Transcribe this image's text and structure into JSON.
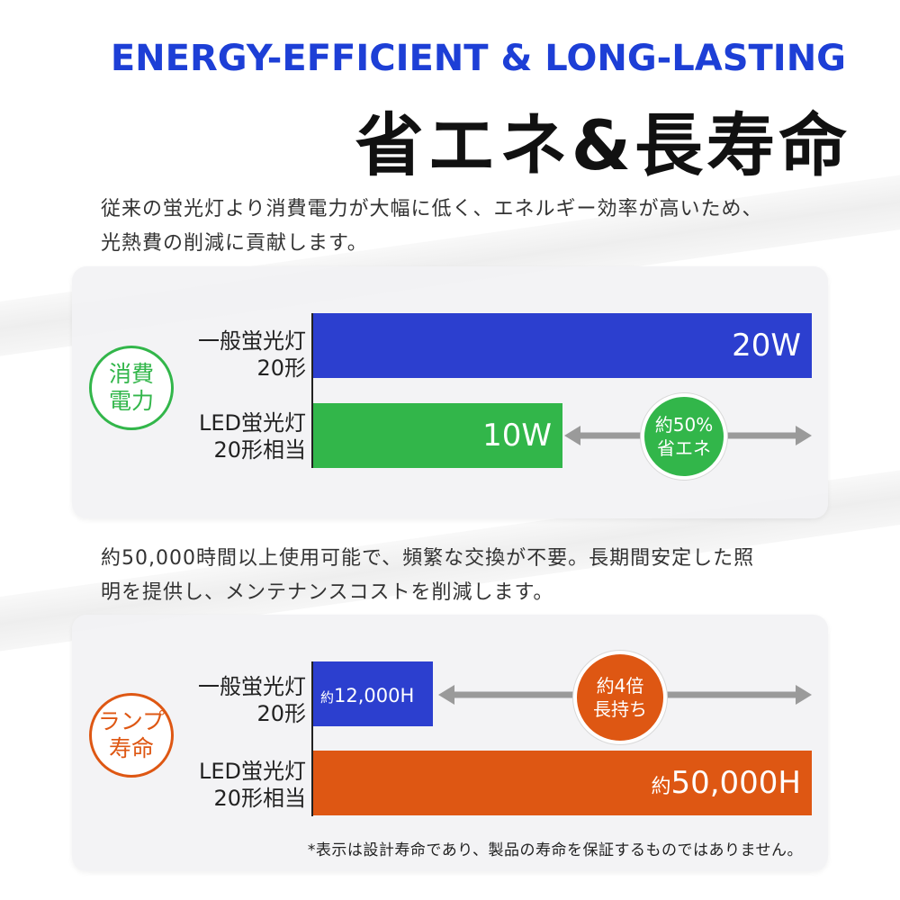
{
  "headline_en": "ENERGY-EFFICIENT & LONG-LASTING",
  "headline_jp": "省エネ&長寿命",
  "description_power": [
    "従来の蛍光灯より消費電力が大幅に低く、エネルギー効率が高いため、",
    "光熱費の削減に貢献します。"
  ],
  "description_life": [
    "約50,000時間以上使用可能で、頻繁な交換が不要。長期間安定した照",
    "明を提供し、メンテナンスコストを削減します。"
  ],
  "footnote": "*表示は設計寿命であり、製品の寿命を保証するものではありません。",
  "colors": {
    "blue": "#2c3fcf",
    "green": "#32b64a",
    "orange": "#de5713",
    "gray_arrow": "#9a9a9a",
    "headline_blue": "#1d3fd6"
  },
  "chart_data": [
    {
      "type": "bar",
      "orientation": "horizontal",
      "category_label": [
        "消費",
        "電力"
      ],
      "categories": [
        [
          "一般蛍光灯",
          "20形"
        ],
        [
          "LED蛍光灯",
          "20形相当"
        ]
      ],
      "values": [
        20,
        10
      ],
      "value_labels": [
        "20W",
        "10W"
      ],
      "xlim": [
        0,
        20
      ],
      "comparison_badge": [
        "約50%",
        "省エネ"
      ]
    },
    {
      "type": "bar",
      "orientation": "horizontal",
      "category_label": [
        "ランプ",
        "寿命"
      ],
      "categories": [
        [
          "一般蛍光灯",
          "20形"
        ],
        [
          "LED蛍光灯",
          "20形相当"
        ]
      ],
      "values": [
        12000,
        50000
      ],
      "value_labels": [
        {
          "prefix": "約",
          "value": "12,000H"
        },
        {
          "prefix": "約",
          "value": "50,000H"
        }
      ],
      "xlim": [
        0,
        50000
      ],
      "comparison_badge": [
        "約4倍",
        "長持ち"
      ]
    }
  ]
}
